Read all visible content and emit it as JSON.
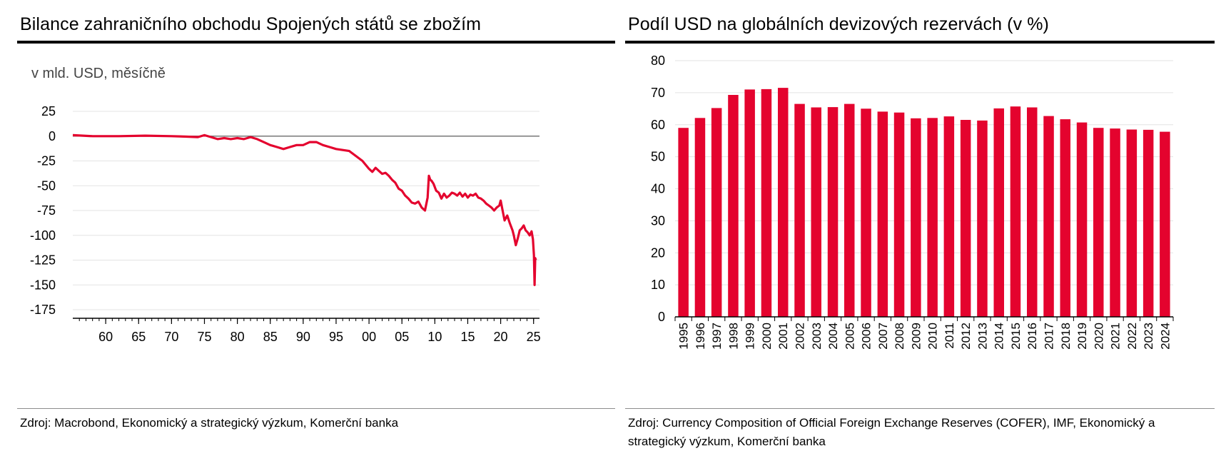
{
  "left_panel": {
    "title": "Bilance zahraničního obchodu Spojených států se zbožím",
    "subtitle": "v mld. USD, měsíčně",
    "source": "Zdroj: Macrobond, Ekonomický a strategický výzkum, Komerční banka"
  },
  "right_panel": {
    "title": "Podíl USD na globálních devizových rezervách (v %)",
    "source": "Zdroj: Currency Composition of Official Foreign Exchange Reserves (COFER), IMF, Ekonomický a strategický výzkum, Komerční banka"
  },
  "colors": {
    "series": "#e4032e",
    "zero_line": "#777777",
    "grid": "#e3e3e3",
    "axis": "#000000"
  },
  "chart_data": [
    {
      "type": "line",
      "title": "Bilance zahraničního obchodu Spojených států se zbožím",
      "subtitle": "v mld. USD, měsíčně",
      "xlabel": "",
      "ylabel": "",
      "x_unit": "year",
      "xlim": [
        1955,
        2025.9
      ],
      "ylim": [
        -175,
        25
      ],
      "yticks": [
        25,
        0,
        -25,
        -50,
        -75,
        -100,
        -125,
        -150,
        -175
      ],
      "xticks": [
        1960,
        1965,
        1970,
        1975,
        1980,
        1985,
        1990,
        1995,
        2000,
        2005,
        2010,
        2015,
        2020,
        2025
      ],
      "xtick_labels": [
        "60",
        "65",
        "70",
        "75",
        "80",
        "85",
        "90",
        "95",
        "00",
        "05",
        "10",
        "15",
        "20",
        "25"
      ],
      "grid": "horizontal",
      "legend": "none",
      "series": [
        {
          "x": [
            1955.0,
            1958.0,
            1962.0,
            1966.0,
            1970.0,
            1972.0,
            1974.0,
            1975.0,
            1976.0,
            1977.0,
            1978.0,
            1979.0,
            1980.0,
            1981.0,
            1982.0,
            1983.0,
            1984.0,
            1985.0,
            1986.0,
            1987.0,
            1988.0,
            1989.0,
            1990.0,
            1991.0,
            1992.0,
            1993.0,
            1994.0,
            1995.0,
            1996.0,
            1997.0,
            1998.0,
            1999.0,
            2000.0,
            2000.5,
            2001.0,
            2001.5,
            2002.0,
            2002.5,
            2003.0,
            2003.5,
            2004.0,
            2004.5,
            2005.0,
            2005.5,
            2006.0,
            2006.5,
            2007.0,
            2007.5,
            2008.0,
            2008.5,
            2008.9,
            2009.1,
            2009.3,
            2009.5,
            2009.8,
            2010.2,
            2010.6,
            2011.0,
            2011.4,
            2011.8,
            2012.2,
            2012.6,
            2013.0,
            2013.4,
            2013.8,
            2014.2,
            2014.6,
            2015.0,
            2015.4,
            2015.8,
            2016.2,
            2016.6,
            2017.0,
            2017.4,
            2017.8,
            2018.2,
            2018.6,
            2019.0,
            2019.4,
            2019.8,
            2020.0,
            2020.3,
            2020.6,
            2021.0,
            2021.4,
            2021.8,
            2022.0,
            2022.3,
            2022.6,
            2022.9,
            2023.2,
            2023.5,
            2023.8,
            2024.1,
            2024.4,
            2024.7,
            2024.9,
            2025.05,
            2025.15,
            2025.25,
            2025.35
          ],
          "y": [
            1,
            0,
            0,
            0.5,
            0,
            -0.5,
            -1,
            1,
            -1,
            -3,
            -2,
            -3,
            -2,
            -3,
            -1,
            -3,
            -6,
            -9,
            -11,
            -13,
            -11,
            -9,
            -9,
            -6,
            -6,
            -9,
            -11,
            -13,
            -14,
            -15,
            -20,
            -25,
            -33,
            -36,
            -32,
            -35,
            -38,
            -37,
            -40,
            -44,
            -47,
            -53,
            -55,
            -60,
            -63,
            -67,
            -68,
            -66,
            -72,
            -75,
            -62,
            -40,
            -44,
            -45,
            -48,
            -55,
            -57,
            -63,
            -58,
            -62,
            -60,
            -57,
            -58,
            -60,
            -57,
            -61,
            -58,
            -62,
            -59,
            -60,
            -58,
            -62,
            -63,
            -65,
            -68,
            -70,
            -72,
            -75,
            -72,
            -70,
            -65,
            -75,
            -85,
            -80,
            -88,
            -95,
            -100,
            -110,
            -103,
            -95,
            -93,
            -90,
            -95,
            -97,
            -100,
            -96,
            -104,
            -120,
            -150,
            -123,
            -125
          ]
        }
      ]
    },
    {
      "type": "bar",
      "title": "Podíl USD na globálních devizových rezervách (v %)",
      "xlabel": "",
      "ylabel": "",
      "ylim": [
        0,
        80
      ],
      "yticks": [
        0,
        10,
        20,
        30,
        40,
        50,
        60,
        70,
        80
      ],
      "grid": "horizontal",
      "legend": "none",
      "categories": [
        "1995",
        "1996",
        "1997",
        "1998",
        "1999",
        "2000",
        "2001",
        "2002",
        "2003",
        "2004",
        "2005",
        "2006",
        "2007",
        "2008",
        "2009",
        "2010",
        "2011",
        "2012",
        "2013",
        "2014",
        "2015",
        "2016",
        "2017",
        "2018",
        "2019",
        "2020",
        "2021",
        "2022",
        "2023",
        "2024"
      ],
      "values": [
        59.0,
        62.1,
        65.2,
        69.3,
        71.0,
        71.1,
        71.5,
        66.5,
        65.4,
        65.5,
        66.5,
        65.0,
        64.1,
        63.8,
        62.0,
        62.1,
        62.6,
        61.5,
        61.3,
        65.1,
        65.7,
        65.4,
        62.7,
        61.7,
        60.7,
        59.0,
        58.8,
        58.5,
        58.4,
        57.8
      ]
    }
  ]
}
